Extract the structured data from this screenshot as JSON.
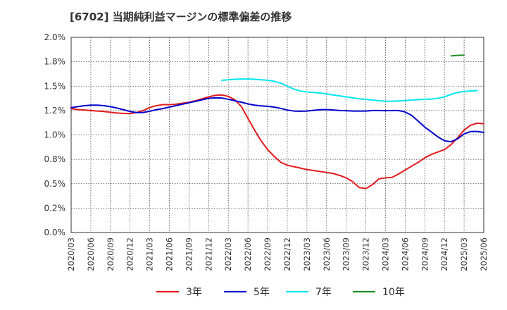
{
  "chart_data": {
    "type": "line",
    "title": "[6702]  当期純利益マージンの標準偏差の推移",
    "xlabel": "",
    "ylabel": "",
    "ylim": [
      0,
      2.0
    ],
    "y_ticks": [
      "2.0%",
      "1.8%",
      "1.5%",
      "1.2%",
      "1.0%",
      "0.8%",
      "0.5%",
      "0.2%",
      "0.0%"
    ],
    "y_tick_values": [
      2.0,
      1.75,
      1.5,
      1.25,
      1.0,
      0.75,
      0.5,
      0.25,
      0.0
    ],
    "x_ticks": [
      "2020/03",
      "2020/06",
      "2020/09",
      "2020/12",
      "2021/03",
      "2021/06",
      "2021/09",
      "2021/12",
      "2022/03",
      "2022/06",
      "2022/09",
      "2022/12",
      "2023/03",
      "2023/06",
      "2023/09",
      "2023/12",
      "2024/03",
      "2024/06",
      "2024/09",
      "2024/12",
      "2025/03",
      "2025/06"
    ],
    "grid": true,
    "legend_position": "bottom",
    "series": [
      {
        "name": "3年",
        "color": "#e41a1c",
        "points": [
          [
            "2020/03",
            1.27
          ],
          [
            "2020/04",
            1.26
          ],
          [
            "2020/05",
            1.255
          ],
          [
            "2020/06",
            1.25
          ],
          [
            "2020/07",
            1.245
          ],
          [
            "2020/08",
            1.24
          ],
          [
            "2020/09",
            1.232
          ],
          [
            "2020/10",
            1.225
          ],
          [
            "2020/11",
            1.22
          ],
          [
            "2020/12",
            1.218
          ],
          [
            "2021/01",
            1.23
          ],
          [
            "2021/02",
            1.25
          ],
          [
            "2021/03",
            1.28
          ],
          [
            "2021/04",
            1.3
          ],
          [
            "2021/05",
            1.31
          ],
          [
            "2021/06",
            1.31
          ],
          [
            "2021/07",
            1.315
          ],
          [
            "2021/08",
            1.325
          ],
          [
            "2021/09",
            1.335
          ],
          [
            "2021/10",
            1.35
          ],
          [
            "2021/11",
            1.37
          ],
          [
            "2021/12",
            1.39
          ],
          [
            "2022/01",
            1.405
          ],
          [
            "2022/02",
            1.41
          ],
          [
            "2022/03",
            1.395
          ],
          [
            "2022/04",
            1.36
          ],
          [
            "2022/05",
            1.29
          ],
          [
            "2022/06",
            1.17
          ],
          [
            "2022/07",
            1.05
          ],
          [
            "2022/08",
            0.94
          ],
          [
            "2022/09",
            0.85
          ],
          [
            "2022/10",
            0.78
          ],
          [
            "2022/11",
            0.72
          ],
          [
            "2022/12",
            0.69
          ],
          [
            "2023/01",
            0.675
          ],
          [
            "2023/02",
            0.66
          ],
          [
            "2023/03",
            0.645
          ],
          [
            "2023/04",
            0.635
          ],
          [
            "2023/05",
            0.625
          ],
          [
            "2023/06",
            0.615
          ],
          [
            "2023/07",
            0.605
          ],
          [
            "2023/08",
            0.585
          ],
          [
            "2023/09",
            0.56
          ],
          [
            "2023/10",
            0.52
          ],
          [
            "2023/11",
            0.46
          ],
          [
            "2023/12",
            0.45
          ],
          [
            "2024/01",
            0.49
          ],
          [
            "2024/02",
            0.55
          ],
          [
            "2024/03",
            0.56
          ],
          [
            "2024/04",
            0.565
          ],
          [
            "2024/05",
            0.6
          ],
          [
            "2024/06",
            0.64
          ],
          [
            "2024/07",
            0.68
          ],
          [
            "2024/08",
            0.72
          ],
          [
            "2024/09",
            0.765
          ],
          [
            "2024/10",
            0.8
          ],
          [
            "2024/11",
            0.825
          ],
          [
            "2024/12",
            0.85
          ],
          [
            "2025/01",
            0.9
          ],
          [
            "2025/02",
            0.97
          ],
          [
            "2025/03",
            1.05
          ],
          [
            "2025/04",
            1.1
          ],
          [
            "2025/05",
            1.12
          ],
          [
            "2025/06",
            1.115
          ]
        ]
      },
      {
        "name": "5年",
        "color": "#0000cc",
        "points": [
          [
            "2020/03",
            1.28
          ],
          [
            "2020/04",
            1.29
          ],
          [
            "2020/05",
            1.3
          ],
          [
            "2020/06",
            1.305
          ],
          [
            "2020/07",
            1.305
          ],
          [
            "2020/08",
            1.3
          ],
          [
            "2020/09",
            1.29
          ],
          [
            "2020/10",
            1.275
          ],
          [
            "2020/11",
            1.258
          ],
          [
            "2020/12",
            1.24
          ],
          [
            "2021/01",
            1.228
          ],
          [
            "2021/02",
            1.23
          ],
          [
            "2021/03",
            1.243
          ],
          [
            "2021/04",
            1.258
          ],
          [
            "2021/05",
            1.27
          ],
          [
            "2021/06",
            1.285
          ],
          [
            "2021/07",
            1.3
          ],
          [
            "2021/08",
            1.315
          ],
          [
            "2021/09",
            1.33
          ],
          [
            "2021/10",
            1.345
          ],
          [
            "2021/11",
            1.36
          ],
          [
            "2021/12",
            1.375
          ],
          [
            "2022/01",
            1.38
          ],
          [
            "2022/02",
            1.378
          ],
          [
            "2022/03",
            1.365
          ],
          [
            "2022/04",
            1.35
          ],
          [
            "2022/05",
            1.335
          ],
          [
            "2022/06",
            1.318
          ],
          [
            "2022/07",
            1.305
          ],
          [
            "2022/08",
            1.298
          ],
          [
            "2022/09",
            1.293
          ],
          [
            "2022/10",
            1.285
          ],
          [
            "2022/11",
            1.272
          ],
          [
            "2022/12",
            1.255
          ],
          [
            "2023/01",
            1.245
          ],
          [
            "2023/02",
            1.243
          ],
          [
            "2023/03",
            1.245
          ],
          [
            "2023/04",
            1.252
          ],
          [
            "2023/05",
            1.258
          ],
          [
            "2023/06",
            1.26
          ],
          [
            "2023/07",
            1.255
          ],
          [
            "2023/08",
            1.25
          ],
          [
            "2023/09",
            1.248
          ],
          [
            "2023/10",
            1.245
          ],
          [
            "2023/11",
            1.245
          ],
          [
            "2023/12",
            1.245
          ],
          [
            "2024/01",
            1.25
          ],
          [
            "2024/02",
            1.25
          ],
          [
            "2024/03",
            1.248
          ],
          [
            "2024/04",
            1.25
          ],
          [
            "2024/05",
            1.25
          ],
          [
            "2024/06",
            1.235
          ],
          [
            "2024/07",
            1.2
          ],
          [
            "2024/08",
            1.14
          ],
          [
            "2024/09",
            1.08
          ],
          [
            "2024/10",
            1.03
          ],
          [
            "2024/11",
            0.98
          ],
          [
            "2024/12",
            0.94
          ],
          [
            "2025/01",
            0.93
          ],
          [
            "2025/02",
            0.96
          ],
          [
            "2025/03",
            1.01
          ],
          [
            "2025/04",
            1.035
          ],
          [
            "2025/05",
            1.035
          ],
          [
            "2025/06",
            1.025
          ]
        ]
      },
      {
        "name": "7年",
        "color": "#00e5ee",
        "points": [
          [
            "2022/02",
            1.56
          ],
          [
            "2022/03",
            1.565
          ],
          [
            "2022/04",
            1.57
          ],
          [
            "2022/05",
            1.573
          ],
          [
            "2022/06",
            1.573
          ],
          [
            "2022/07",
            1.57
          ],
          [
            "2022/08",
            1.565
          ],
          [
            "2022/09",
            1.56
          ],
          [
            "2022/10",
            1.55
          ],
          [
            "2022/11",
            1.53
          ],
          [
            "2022/12",
            1.5
          ],
          [
            "2023/01",
            1.47
          ],
          [
            "2023/02",
            1.45
          ],
          [
            "2023/03",
            1.44
          ],
          [
            "2023/04",
            1.435
          ],
          [
            "2023/05",
            1.43
          ],
          [
            "2023/06",
            1.42
          ],
          [
            "2023/07",
            1.41
          ],
          [
            "2023/08",
            1.4
          ],
          [
            "2023/09",
            1.39
          ],
          [
            "2023/10",
            1.38
          ],
          [
            "2023/11",
            1.37
          ],
          [
            "2023/12",
            1.365
          ],
          [
            "2024/01",
            1.357
          ],
          [
            "2024/02",
            1.35
          ],
          [
            "2024/03",
            1.345
          ],
          [
            "2024/04",
            1.345
          ],
          [
            "2024/05",
            1.348
          ],
          [
            "2024/06",
            1.352
          ],
          [
            "2024/07",
            1.357
          ],
          [
            "2024/08",
            1.362
          ],
          [
            "2024/09",
            1.365
          ],
          [
            "2024/10",
            1.368
          ],
          [
            "2024/11",
            1.375
          ],
          [
            "2024/12",
            1.39
          ],
          [
            "2025/01",
            1.415
          ],
          [
            "2025/02",
            1.435
          ],
          [
            "2025/03",
            1.445
          ],
          [
            "2025/04",
            1.45
          ],
          [
            "2025/05",
            1.455
          ]
        ]
      },
      {
        "name": "10年",
        "color": "#228b22",
        "points": [
          [
            "2025/01",
            1.81
          ],
          [
            "2025/02",
            1.815
          ],
          [
            "2025/03",
            1.818
          ]
        ]
      }
    ]
  }
}
